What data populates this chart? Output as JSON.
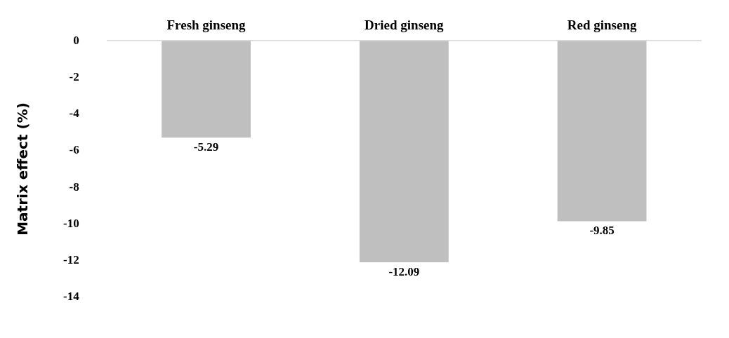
{
  "chart_data": {
    "type": "bar",
    "ylabel": "Matrix effect (%)",
    "categories": [
      "Fresh ginseng",
      "Dried ginseng",
      "Red ginseng"
    ],
    "values": [
      -5.29,
      -12.09,
      -9.85
    ],
    "color": "#bfbfbf",
    "ylim": [
      -14,
      0
    ],
    "yticks": [
      0,
      -2,
      -4,
      -6,
      -8,
      -10,
      -12,
      -14
    ],
    "grid": false,
    "legend": false,
    "data_labels": true
  }
}
